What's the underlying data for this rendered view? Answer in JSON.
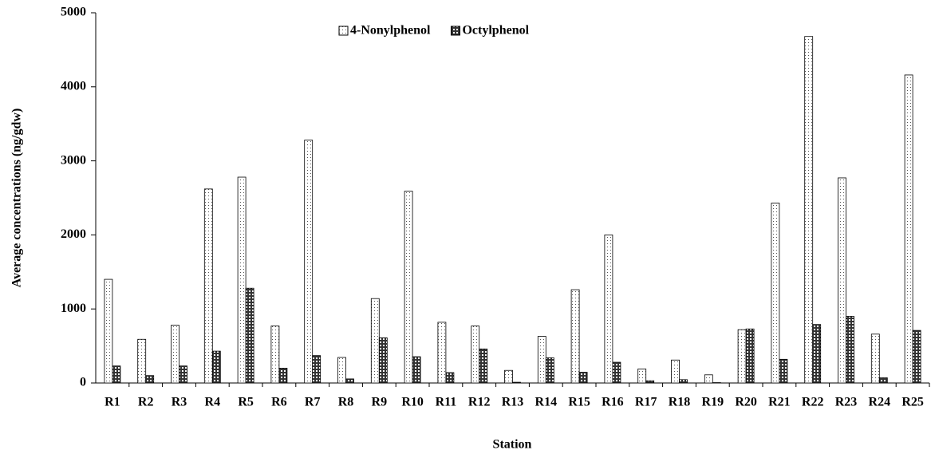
{
  "chart_data": {
    "type": "bar",
    "y_label": "Average concentrations (ng/gdw)",
    "x_label": "Station",
    "categories": [
      "R1",
      "R2",
      "R3",
      "R4",
      "R5",
      "R6",
      "R7",
      "R8",
      "R9",
      "R10",
      "R11",
      "R12",
      "R13",
      "R14",
      "R15",
      "R16",
      "R17",
      "R18",
      "R19",
      "R20",
      "R21",
      "R22",
      "R23",
      "R24",
      "R25"
    ],
    "series": [
      {
        "name": "4-Nonylphenol",
        "color": "#ffffff",
        "values": [
          1400,
          590,
          780,
          2620,
          2780,
          770,
          3280,
          345,
          1140,
          2590,
          820,
          770,
          170,
          630,
          1260,
          2000,
          190,
          310,
          110,
          720,
          2430,
          4680,
          2770,
          660,
          4160
        ]
      },
      {
        "name": "Octylphenol",
        "color": "#333333",
        "values": [
          230,
          100,
          230,
          430,
          1280,
          200,
          370,
          55,
          610,
          355,
          140,
          460,
          10,
          340,
          145,
          280,
          30,
          45,
          5,
          730,
          320,
          790,
          900,
          70,
          710
        ]
      }
    ],
    "ylim": [
      0,
      5000
    ],
    "yticks": [
      0,
      1000,
      2000,
      3000,
      4000,
      5000
    ],
    "grid": false,
    "legend": "top"
  }
}
